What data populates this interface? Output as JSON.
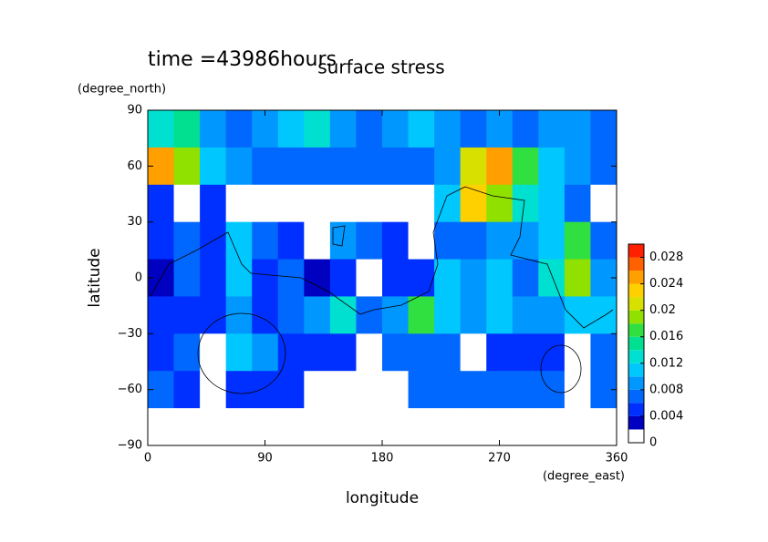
{
  "chart_data": {
    "type": "contour",
    "time_label": "time =43986hours",
    "title": "surface stress",
    "x_label": "longitude",
    "x_unit": "(degree_east)",
    "y_label": "latitude",
    "y_unit": "(degree_north)",
    "xlim": [
      0,
      360
    ],
    "ylim": [
      -90,
      90
    ],
    "xticks": [
      0,
      90,
      180,
      270,
      360
    ],
    "yticks": [
      {
        "value": -90,
        "label": "−90"
      },
      {
        "value": -60,
        "label": "−60"
      },
      {
        "value": -30,
        "label": "−30"
      },
      0,
      30,
      60,
      90
    ],
    "x": [
      10,
      30,
      50,
      70,
      90,
      110,
      130,
      150,
      170,
      190,
      210,
      230,
      250,
      270,
      290,
      310,
      330,
      350
    ],
    "y": [
      80,
      60,
      40,
      20,
      0,
      -20,
      -40,
      -60,
      -80
    ],
    "z": [
      [
        0.012,
        0.014,
        0.008,
        0.006,
        0.008,
        0.01,
        0.012,
        0.008,
        0.006,
        0.008,
        0.01,
        0.008,
        0.006,
        0.008,
        0.006,
        0.008,
        0.008,
        0.006
      ],
      [
        0.024,
        0.018,
        0.01,
        0.008,
        0.006,
        0.006,
        0.006,
        0.006,
        0.006,
        0.006,
        0.006,
        0.008,
        0.02,
        0.024,
        0.016,
        0.01,
        0.008,
        0.006
      ],
      [
        0.004,
        0,
        0.004,
        0,
        0,
        0,
        0,
        0,
        0,
        0,
        0,
        0.01,
        0.022,
        0.018,
        0.012,
        0.01,
        0.006,
        0
      ],
      [
        0.004,
        0.006,
        0.004,
        0.01,
        0.006,
        0.004,
        0,
        0.008,
        0.006,
        0.004,
        0,
        0.006,
        0.006,
        0.008,
        0.008,
        0.01,
        0.016,
        0.006
      ],
      [
        0.002,
        0.006,
        0.004,
        0.01,
        0.004,
        0.006,
        0.002,
        0.004,
        0,
        0.004,
        0.004,
        0.01,
        0.008,
        0.01,
        0.006,
        0.012,
        0.018,
        0.008
      ],
      [
        0.004,
        0.004,
        0.004,
        0.008,
        0.004,
        0.006,
        0.008,
        0.012,
        0.006,
        0.008,
        0.016,
        0.01,
        0.008,
        0.01,
        0.008,
        0.008,
        0.01,
        0.01
      ],
      [
        0.004,
        0.006,
        0,
        0.01,
        0.008,
        0.004,
        0.004,
        0.004,
        0,
        0.006,
        0.006,
        0.006,
        0,
        0.004,
        0.004,
        0.004,
        0,
        0.006
      ],
      [
        0.006,
        0.004,
        0,
        0.004,
        0.004,
        0.004,
        0,
        0,
        0,
        0,
        0.006,
        0.006,
        0.006,
        0.006,
        0.006,
        0.006,
        0,
        0.006
      ],
      [
        0,
        0,
        0,
        0,
        0,
        0,
        0,
        0,
        0,
        0,
        0,
        0,
        0,
        0,
        0,
        0,
        0,
        0
      ]
    ],
    "levels": [
      0,
      0.002,
      0.004,
      0.006,
      0.008,
      0.01,
      0.012,
      0.014,
      0.016,
      0.018,
      0.02,
      0.022,
      0.024,
      0.026,
      0.028
    ],
    "level_colors": [
      "#ffffff",
      "#0000c0",
      "#0030ff",
      "#0068ff",
      "#0098ff",
      "#00c8ff",
      "#00e0d0",
      "#00e090",
      "#30e040",
      "#90e000",
      "#d8e000",
      "#ffd000",
      "#ffa000",
      "#ff6000",
      "#ff2000"
    ],
    "zlim": [
      0,
      0.03
    ],
    "zticks": [
      0,
      0.004,
      0.008,
      0.012,
      0.016,
      0.02,
      0.024,
      0.028
    ]
  }
}
